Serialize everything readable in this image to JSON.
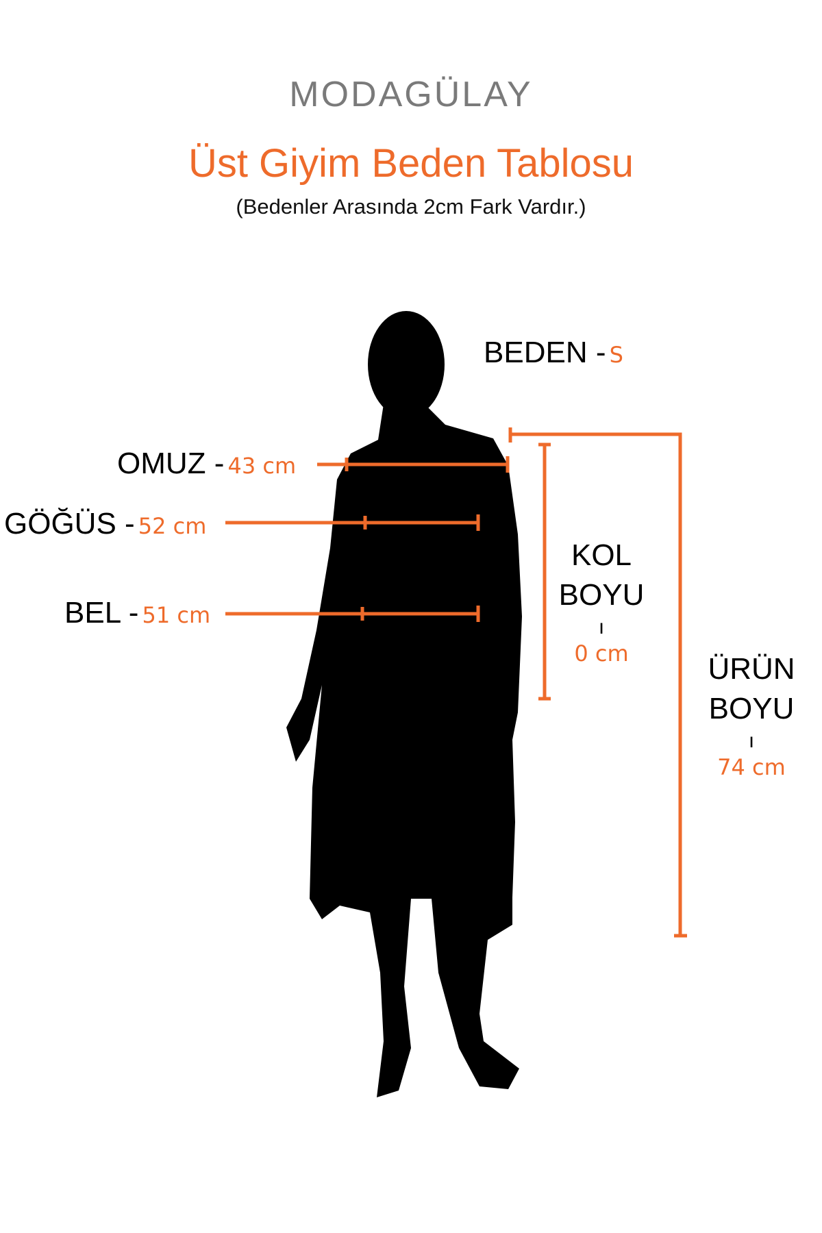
{
  "brand": {
    "logo_text": "MODAGÜLAY"
  },
  "header": {
    "title": "Üst Giyim Beden Tablosu",
    "subtitle": "(Bedenler Arasında 2cm Fark Vardır.)"
  },
  "size": {
    "label": "BEDEN -",
    "value": "S"
  },
  "measurements": {
    "omuz": {
      "label": "OMUZ -",
      "value": "43 cm"
    },
    "gogus": {
      "label": "GÖĞÜS -",
      "value": "52 cm"
    },
    "bel": {
      "label": "BEL -",
      "value": "51 cm"
    },
    "kol_boyu": {
      "label_line1": "KOL",
      "label_line2": "BOYU",
      "separator": "ı",
      "value": "0 cm"
    },
    "urun_boyu": {
      "label_line1": "ÜRÜN",
      "label_line2": "BOYU",
      "separator": "ı",
      "value": "74 cm"
    }
  },
  "colors": {
    "accent": "#ee6b2b",
    "logo": "#7a7a7a",
    "text": "#000000",
    "silhouette": "#000000"
  }
}
